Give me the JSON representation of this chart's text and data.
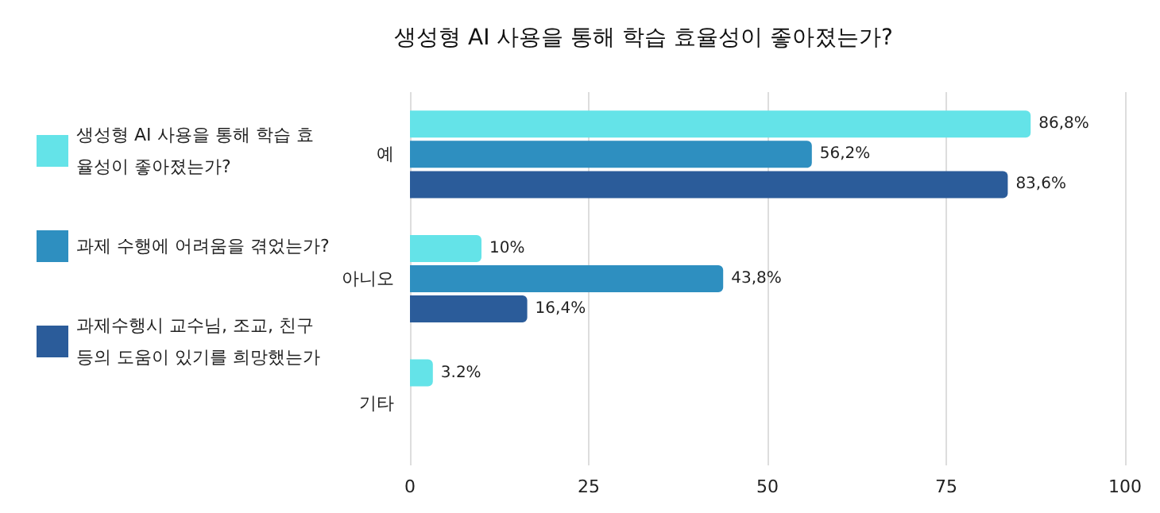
{
  "chart_data": {
    "type": "bar",
    "orientation": "horizontal",
    "title": "생성형 AI 사용을 통해 학습 효율성이 좋아졌는가?",
    "categories": [
      "예",
      "아니오",
      "기타"
    ],
    "series": [
      {
        "name": "생성형 AI 사용을 통해 학습 효율성이 좋아졌는가?",
        "color": "#64e3e8",
        "values": [
          86.8,
          10,
          3.2
        ],
        "value_labels": [
          "86,8%",
          "10%",
          "3.2%"
        ]
      },
      {
        "name": "과제 수행에 어려움을 겪었는가?",
        "color": "#2e8fc0",
        "values": [
          56.2,
          43.8,
          null
        ],
        "value_labels": [
          "56,2%",
          "43,8%",
          null
        ]
      },
      {
        "name": "과제수행시 교수님, 조교, 친구 등의 도움이 있기를 희망했는가",
        "color": "#2b5c9a",
        "values": [
          83.6,
          16.4,
          null
        ],
        "value_labels": [
          "83,6%",
          "16,4%",
          null
        ]
      }
    ],
    "xlim": [
      0,
      100
    ],
    "xticks": [
      0,
      25,
      50,
      75,
      100
    ],
    "grid": "x",
    "legend": "left"
  }
}
